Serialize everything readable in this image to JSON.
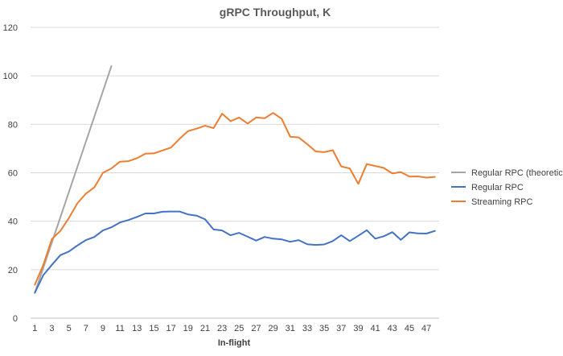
{
  "chart_data": {
    "type": "line",
    "title": "gRPC Throughput, K",
    "xlabel": "In-flight",
    "ylabel": "",
    "x": [
      1,
      2,
      3,
      4,
      5,
      6,
      7,
      8,
      9,
      10,
      11,
      12,
      13,
      14,
      15,
      16,
      17,
      18,
      19,
      20,
      21,
      22,
      23,
      24,
      25,
      26,
      27,
      28,
      29,
      30,
      31,
      32,
      33,
      34,
      35,
      36,
      37,
      38,
      39,
      40,
      41,
      42,
      43,
      44,
      45,
      46,
      47,
      48
    ],
    "x_tick_labels": [
      "1",
      "3",
      "5",
      "7",
      "9",
      "11",
      "13",
      "15",
      "17",
      "19",
      "21",
      "23",
      "25",
      "27",
      "29",
      "31",
      "33",
      "35",
      "37",
      "39",
      "41",
      "43",
      "45",
      "47"
    ],
    "ylim": [
      0,
      120
    ],
    "y_ticks": [
      0,
      20,
      40,
      60,
      80,
      100,
      120
    ],
    "grid": "horizontal",
    "legend_position": "right",
    "series": [
      {
        "name": "Regular RPC (theoretical)",
        "color": "#a5a5a5",
        "x": [
          1,
          10
        ],
        "values": [
          10.4,
          104
        ]
      },
      {
        "name": "Regular RPC",
        "color": "#4472c4",
        "values": [
          10.5,
          17.8,
          22.0,
          26.0,
          27.5,
          30.0,
          32.2,
          33.5,
          36.2,
          37.5,
          39.5,
          40.5,
          41.8,
          43.2,
          43.2,
          43.9,
          44.0,
          44.0,
          42.8,
          42.3,
          40.8,
          36.6,
          36.2,
          34.2,
          35.2,
          33.6,
          32.0,
          33.5,
          32.8,
          32.5,
          31.5,
          32.2,
          30.5,
          30.2,
          30.4,
          31.8,
          34.2,
          31.8,
          34.0,
          36.3,
          32.8,
          33.8,
          35.5,
          32.3,
          35.4,
          35.0,
          34.9,
          36.0
        ]
      },
      {
        "name": "Streaming RPC",
        "color": "#ed7d31",
        "values": [
          13.8,
          22.0,
          32.6,
          36.0,
          41.3,
          47.4,
          51.4,
          54.0,
          60.0,
          61.8,
          64.6,
          64.8,
          66.0,
          67.9,
          68.0,
          69.2,
          70.4,
          74.0,
          77.2,
          78.2,
          79.4,
          78.4,
          84.4,
          81.3,
          82.8,
          80.3,
          82.8,
          82.5,
          84.7,
          82.3,
          74.9,
          74.6,
          71.8,
          68.8,
          68.5,
          69.3,
          62.6,
          61.8,
          55.4,
          63.6,
          62.8,
          62.0,
          59.7,
          60.3,
          58.4,
          58.5,
          58.0,
          58.3
        ]
      }
    ]
  }
}
